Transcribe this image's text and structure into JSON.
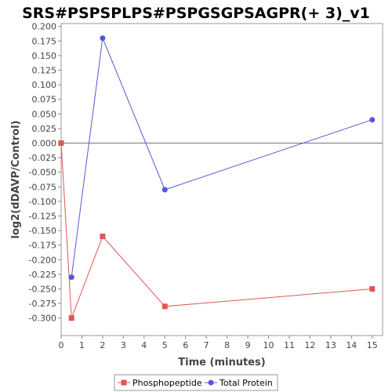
{
  "chart_data": {
    "type": "line",
    "title": "SRS#PSPSPLPS#PSPGSGPSAGPR(+ 3)_v1",
    "xlabel": "Time (minutes)",
    "ylabel": "log2(dDAVP/Control)",
    "xlim": [
      0,
      15.5
    ],
    "ylim": [
      -0.33,
      0.205
    ],
    "xticks": [
      0,
      1,
      2,
      3,
      4,
      5,
      6,
      7,
      8,
      9,
      10,
      11,
      12,
      13,
      14,
      15
    ],
    "yticks": [
      0.2,
      0.175,
      0.15,
      0.125,
      0.1,
      0.075,
      0.05,
      0.025,
      0.0,
      -0.025,
      -0.05,
      -0.075,
      -0.1,
      -0.125,
      -0.15,
      -0.175,
      -0.2,
      -0.225,
      -0.25,
      -0.275,
      -0.3
    ],
    "ytick_labels": [
      "0.200",
      "0.175",
      "0.150",
      "0.125",
      "0.100",
      "0.075",
      "0.050",
      "0.025",
      "0.000",
      "-0.025",
      "-0.050",
      "-0.075",
      "-0.100",
      "-0.125",
      "-0.150",
      "-0.175",
      "-0.200",
      "-0.225",
      "-0.250",
      "-0.275",
      "-0.300"
    ],
    "grid": false,
    "zero_line": true,
    "legend_position": "bottom",
    "series": [
      {
        "name": "Phosphopeptide",
        "color": "#e05555",
        "marker": "square",
        "x": [
          0,
          0.5,
          2,
          5,
          15
        ],
        "y": [
          0.0,
          -0.3,
          -0.16,
          -0.28,
          -0.25
        ]
      },
      {
        "name": "Total Protein",
        "color": "#5555e0",
        "marker": "circle",
        "x": [
          0.5,
          2,
          5,
          15
        ],
        "y": [
          -0.23,
          0.18,
          -0.08,
          0.04
        ]
      }
    ]
  }
}
